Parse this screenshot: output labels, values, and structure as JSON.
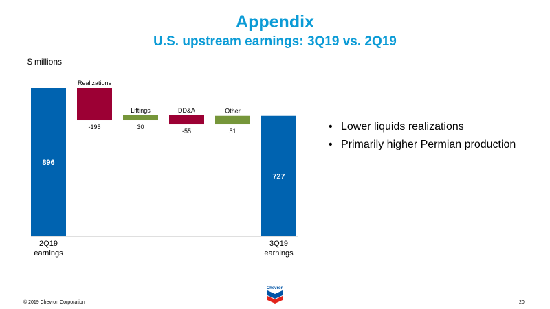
{
  "header": {
    "title": "Appendix",
    "subtitle": "U.S. upstream earnings: 3Q19 vs. 2Q19"
  },
  "units_label": "$ millions",
  "chart_data": {
    "type": "waterfall",
    "ylim": [
      0,
      896
    ],
    "grid": false,
    "bars": [
      {
        "label": "2Q19 earnings",
        "kind": "total",
        "value": 896,
        "value_text": "896",
        "color": "#0063b0"
      },
      {
        "label": "Realizations",
        "kind": "delta",
        "value": -195,
        "value_text": "-195",
        "color": "#9c0034"
      },
      {
        "label": "Liftings",
        "kind": "delta",
        "value": 30,
        "value_text": "30",
        "color": "#76963a"
      },
      {
        "label": "DD&A",
        "kind": "delta",
        "value": -55,
        "value_text": "-55",
        "color": "#9c0034"
      },
      {
        "label": "Other",
        "kind": "delta",
        "value": 51,
        "value_text": "51",
        "color": "#76963a"
      },
      {
        "label": "3Q19 earnings",
        "kind": "total",
        "value": 727,
        "value_text": "727",
        "color": "#0063b0"
      }
    ]
  },
  "bullets": [
    "Lower liquids realizations",
    "Primarily higher Permian production"
  ],
  "footer": {
    "copyright": "© 2019 Chevron Corporation",
    "page_number": "20",
    "logo_text": "Chevron"
  },
  "colors": {
    "title": "#0b9bd6",
    "logo_blue": "#0054a6",
    "logo_red": "#e2231a"
  }
}
